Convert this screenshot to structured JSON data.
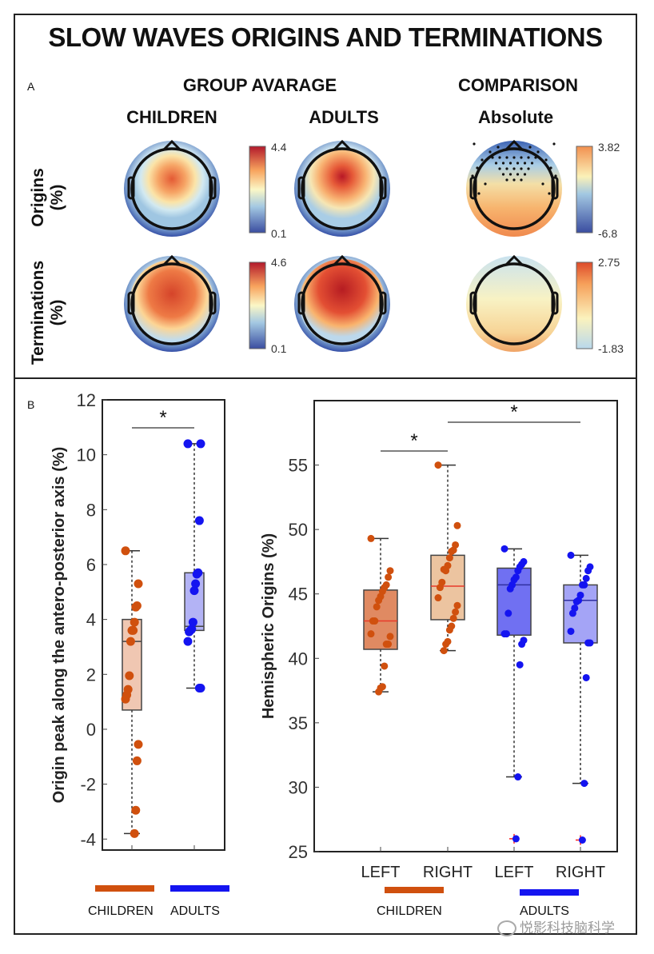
{
  "figure": {
    "title": "SLOW WAVES ORIGINS AND TERMINATIONS",
    "panel_a": {
      "letter": "A",
      "group_header": "GROUP AVARAGE",
      "comparison_header": "COMPARISON",
      "col_children": "CHILDREN",
      "col_adults": "ADULTS",
      "col_absolute": "Absolute",
      "row_origins": [
        "Origins",
        "(%)"
      ],
      "row_terminations": [
        "Terminations",
        "(%)"
      ],
      "colorbars": {
        "origins_group": {
          "max": "4.4",
          "min": "0.1"
        },
        "terminations_group": {
          "max": "4.6",
          "min": "0.1"
        },
        "origins_comparison": {
          "max": "3.82",
          "min": "-6.8"
        },
        "terminations_comparison": {
          "max": "2.75",
          "min": "-1.83"
        }
      }
    },
    "panel_b": {
      "letter": "B"
    },
    "legend": {
      "left_children": "CHILDREN",
      "left_adults": "ADULTS",
      "right_children": "CHILDREN",
      "right_adults": "ADULTS"
    },
    "watermark": "悦影科技脑科学"
  },
  "colors": {
    "children": "#d0500e",
    "adults": "#1414f0",
    "children_box_left": "#f0c7b2",
    "adults_box_left": "#b3b3f5",
    "children_box_L": "#e08a62",
    "children_box_R": "#ecc4a0",
    "adults_box_L": "#7070f2",
    "adults_box_R": "#a4a4f6",
    "median_red": "#e83a2a",
    "outlier_red": "#ff2020"
  },
  "chart_data": [
    {
      "type": "box",
      "title": "",
      "xlabel": "",
      "ylabel": "Origin peak along the antero-posterior axis (%)",
      "ylim": [
        -4.4,
        12
      ],
      "yticks": [
        -4,
        -2,
        0,
        2,
        4,
        6,
        8,
        10,
        12
      ],
      "categories": [
        "CHILDREN",
        "ADULTS"
      ],
      "significance": [
        {
          "from": 0,
          "to": 1,
          "label": "*"
        }
      ],
      "groups": [
        {
          "name": "CHILDREN",
          "box": {
            "q1": 0.7,
            "median": 3.2,
            "q3": 4.0,
            "whisker_low": -3.8,
            "whisker_high": 6.5
          },
          "points": [
            6.5,
            5.3,
            4.5,
            4.45,
            3.9,
            3.6,
            3.6,
            3.2,
            1.95,
            1.45,
            1.25,
            1.1,
            -0.55,
            -1.15,
            -2.95,
            -3.8
          ]
        },
        {
          "name": "ADULTS",
          "box": {
            "q1": 3.6,
            "median": 3.75,
            "q3": 5.7,
            "whisker_low": 1.5,
            "whisker_high": 10.4
          },
          "points": [
            10.4,
            10.4,
            7.6,
            5.7,
            5.65,
            5.3,
            5.05,
            3.9,
            3.65,
            3.6,
            3.55,
            3.2,
            1.5,
            1.5
          ]
        }
      ]
    },
    {
      "type": "box",
      "title": "",
      "xlabel": "",
      "ylabel": "Hemispheric Origins (%)",
      "ylim": [
        25,
        60
      ],
      "yticks": [
        25,
        30,
        35,
        40,
        45,
        50,
        55
      ],
      "categories": [
        "LEFT",
        "RIGHT",
        "LEFT",
        "RIGHT"
      ],
      "group_labels": [
        "CHILDREN",
        "CHILDREN",
        "ADULTS",
        "ADULTS"
      ],
      "significance": [
        {
          "from": 0,
          "to": 1,
          "label": "*"
        },
        {
          "from": 1,
          "to": 3,
          "label": "*"
        }
      ],
      "groups": [
        {
          "name": "CHILDREN LEFT",
          "box": {
            "q1": 40.7,
            "median": 42.9,
            "q3": 45.3,
            "whisker_low": 37.4,
            "whisker_high": 49.3
          },
          "outliers": [],
          "points": [
            49.3,
            46.8,
            46.3,
            45.7,
            45.5,
            45.2,
            44.8,
            44.5,
            44.0,
            42.9,
            42.9,
            41.9,
            41.7,
            41.1,
            41.1,
            39.4,
            37.8,
            37.7,
            37.4
          ]
        },
        {
          "name": "CHILDREN RIGHT",
          "box": {
            "q1": 43.0,
            "median": 45.6,
            "q3": 48.0,
            "whisker_low": 40.6,
            "whisker_high": 55.0
          },
          "outliers": [],
          "points": [
            55.0,
            50.3,
            48.8,
            48.4,
            48.3,
            47.8,
            47.2,
            46.8,
            46.9,
            45.9,
            45.5,
            44.7,
            44.1,
            43.6,
            43.1,
            42.5,
            42.2,
            41.3,
            41.1,
            40.6
          ]
        },
        {
          "name": "ADULTS LEFT",
          "box": {
            "q1": 41.8,
            "median": 45.7,
            "q3": 47.0,
            "whisker_low": 30.8,
            "whisker_high": 48.5
          },
          "outliers": [
            26.0
          ],
          "points": [
            48.5,
            47.5,
            47.3,
            47.1,
            46.8,
            46.3,
            46.1,
            45.7,
            45.4,
            43.5,
            41.9,
            41.9,
            41.4,
            41.1,
            39.5,
            30.8,
            26.0
          ]
        },
        {
          "name": "ADULTS RIGHT",
          "box": {
            "q1": 41.2,
            "median": 44.5,
            "q3": 45.7,
            "whisker_low": 30.3,
            "whisker_high": 48.0
          },
          "outliers": [
            25.9
          ],
          "points": [
            48.0,
            47.1,
            46.8,
            46.2,
            45.7,
            45.7,
            44.9,
            44.5,
            44.4,
            43.9,
            43.5,
            42.1,
            41.2,
            41.2,
            38.5,
            30.3,
            25.9
          ]
        }
      ]
    }
  ]
}
